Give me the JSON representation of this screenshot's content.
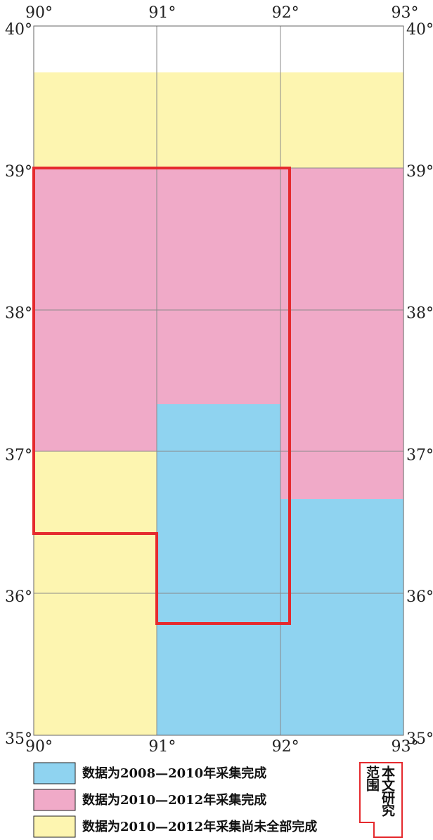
{
  "map": {
    "lon_labels": [
      "90°",
      "91°",
      "92°",
      "93°"
    ],
    "lat_labels": [
      "40°",
      "39°",
      "38°",
      "37°",
      "36°",
      "35°"
    ],
    "legend": [
      "数据为2008—2010年采集完成",
      "数据为2010—2012年采集完成",
      "数据为2010—2012年采集尚未全部完成"
    ],
    "study_area_label": {
      "column1": "本文研究",
      "column2": "范围"
    }
  }
}
